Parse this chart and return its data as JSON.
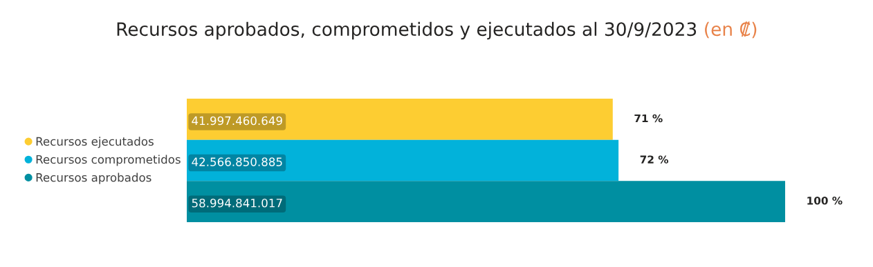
{
  "chart_data": {
    "type": "bar",
    "orientation": "horizontal",
    "title": "Recursos aprobados, comprometidos y ejecutados al 30/9/2023",
    "subtitle": "(en ₡)",
    "categories": [
      null
    ],
    "legend": "left",
    "series": [
      {
        "name": "Recursos ejecutados",
        "color": "#fdcd32",
        "values": [
          41997460649
        ],
        "value_labels": [
          "41.997.460.649"
        ]
      },
      {
        "name": "Recursos comprometidos",
        "color": "#02b2da",
        "values": [
          42566850885
        ],
        "value_labels": [
          "42.566.850.885"
        ]
      },
      {
        "name": "Recursos aprobados",
        "color": "#008fa1",
        "values": [
          58994841017
        ],
        "value_labels": [
          "58.994.841.017"
        ]
      }
    ],
    "annotations": [
      "71 %",
      "72 %",
      "100 %"
    ]
  }
}
